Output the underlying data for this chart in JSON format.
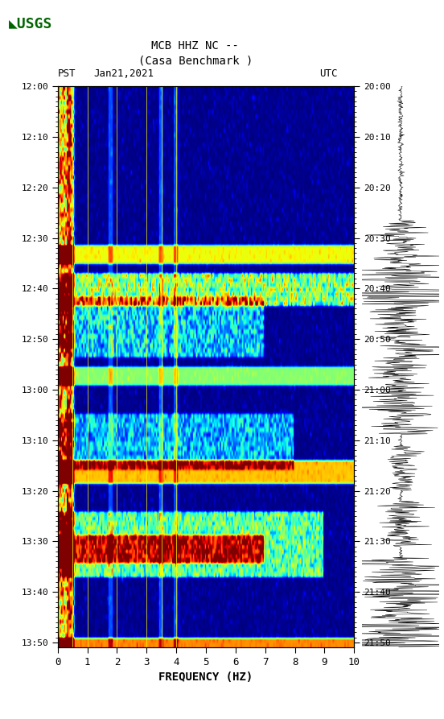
{
  "title_line1": "MCB HHZ NC --",
  "title_line2": "(Casa Benchmark )",
  "date_label": "Jan21,2021",
  "left_tz": "PST",
  "right_tz": "UTC",
  "left_times": [
    "12:00",
    "12:10",
    "12:20",
    "12:30",
    "12:40",
    "12:50",
    "13:00",
    "13:10",
    "13:20",
    "13:30",
    "13:40",
    "13:50"
  ],
  "right_times": [
    "20:00",
    "20:10",
    "20:20",
    "20:30",
    "20:40",
    "20:50",
    "21:00",
    "21:10",
    "21:20",
    "21:30",
    "21:40",
    "21:50"
  ],
  "freq_label": "FREQUENCY (HZ)",
  "freq_min": 0,
  "freq_max": 10,
  "freq_ticks": [
    0,
    1,
    2,
    3,
    4,
    5,
    6,
    7,
    8,
    9,
    10
  ],
  "time_steps": 120,
  "freq_steps": 200,
  "spectrogram_colormap": "jet",
  "vertical_lines_freq": [
    0.5,
    1.0,
    2.0,
    3.0,
    3.5,
    4.0
  ],
  "waveform_color": "black"
}
